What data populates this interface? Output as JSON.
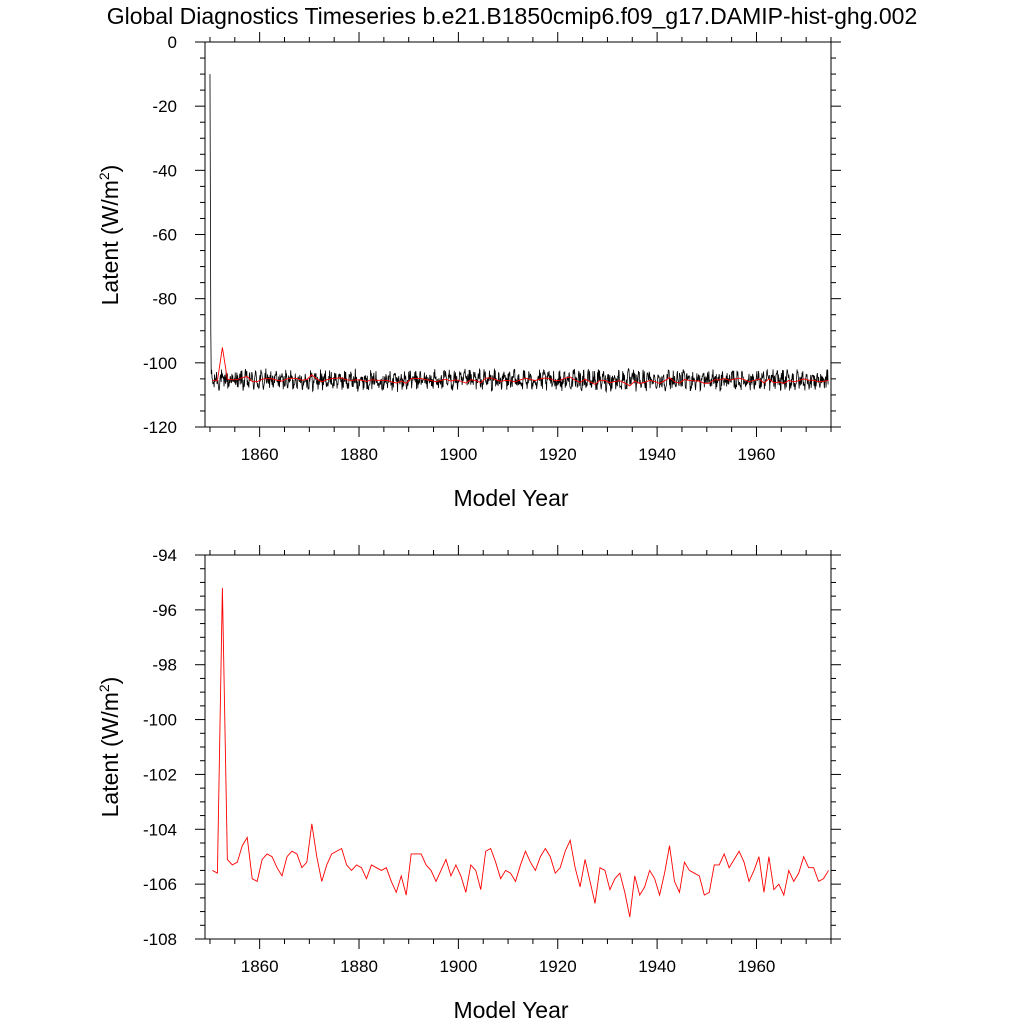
{
  "figure": {
    "title": "Global Diagnostics Timeseries b.e21.B1850cmip6.f09_g17.DAMIP-hist-ghg.002"
  },
  "chart_data": [
    {
      "type": "line",
      "ylabel": "Latent (W/m",
      "ylabel_sup": "2",
      "ylabel_close": ")",
      "xlabel": "Model Year",
      "xlim": [
        1849,
        1975
      ],
      "ylim": [
        -120,
        0
      ],
      "x_ticks": [
        1860,
        1880,
        1900,
        1920,
        1940,
        1960
      ],
      "y_ticks": [
        0,
        -20,
        -40,
        -60,
        -80,
        -100,
        -120
      ],
      "series": [
        {
          "type": "monthly",
          "color": "#000000",
          "start_year": 1850,
          "start_values": [
            -10,
            -50,
            -90,
            -103.5
          ],
          "mean": -105.4,
          "amplitude": 2.5
        },
        {
          "type": "annual",
          "color": "#ff0000",
          "x": [
            1850,
            1851,
            1852,
            1853,
            1854,
            1855,
            1856,
            1857,
            1858,
            1859,
            1860,
            1861,
            1862,
            1863,
            1864,
            1865,
            1866,
            1867,
            1868,
            1869,
            1870,
            1871,
            1872,
            1873,
            1874,
            1875,
            1876,
            1877,
            1878,
            1879,
            1880,
            1881,
            1882,
            1883,
            1884,
            1885,
            1886,
            1887,
            1888,
            1889,
            1890,
            1891,
            1892,
            1893,
            1894,
            1895,
            1896,
            1897,
            1898,
            1899,
            1900,
            1901,
            1902,
            1903,
            1904,
            1905,
            1906,
            1907,
            1908,
            1909,
            1910,
            1911,
            1912,
            1913,
            1914,
            1915,
            1916,
            1917,
            1918,
            1919,
            1920,
            1921,
            1922,
            1923,
            1924,
            1925,
            1926,
            1927,
            1928,
            1929,
            1930,
            1931,
            1932,
            1933,
            1934,
            1935,
            1936,
            1937,
            1938,
            1939,
            1940,
            1941,
            1942,
            1943,
            1944,
            1945,
            1946,
            1947,
            1948,
            1949,
            1950,
            1951,
            1952,
            1953,
            1954,
            1955,
            1956,
            1957,
            1958,
            1959,
            1960,
            1961,
            1962,
            1963,
            1964,
            1965,
            1966,
            1967,
            1968,
            1969,
            1970,
            1971,
            1972,
            1973,
            1974
          ],
          "values": [
            -105.5,
            -105.6,
            -95.2,
            -105.1,
            -105.3,
            -105.2,
            -104.6,
            -104.3,
            -105.8,
            -105.9,
            -105.1,
            -104.9,
            -105.0,
            -105.4,
            -105.7,
            -105.0,
            -104.8,
            -104.9,
            -105.4,
            -105.2,
            -103.8,
            -105.0,
            -105.9,
            -105.3,
            -104.9,
            -104.8,
            -104.7,
            -105.3,
            -105.5,
            -105.3,
            -105.4,
            -105.8,
            -105.3,
            -105.4,
            -105.5,
            -105.4,
            -105.9,
            -106.3,
            -105.7,
            -106.4,
            -104.9,
            -104.9,
            -104.9,
            -105.3,
            -105.5,
            -105.9,
            -105.5,
            -105.1,
            -105.7,
            -105.3,
            -105.7,
            -106.3,
            -105.3,
            -105.5,
            -106.2,
            -104.8,
            -104.7,
            -105.2,
            -105.8,
            -105.5,
            -105.6,
            -105.9,
            -105.3,
            -104.8,
            -105.2,
            -105.5,
            -105.0,
            -104.7,
            -105.0,
            -105.6,
            -105.4,
            -104.8,
            -104.4,
            -105.4,
            -106.1,
            -105.1,
            -105.9,
            -106.7,
            -105.4,
            -105.5,
            -106.2,
            -105.8,
            -105.6,
            -106.3,
            -107.2,
            -105.7,
            -106.4,
            -106.1,
            -105.5,
            -105.8,
            -106.4,
            -105.6,
            -104.6,
            -105.9,
            -106.3,
            -105.2,
            -105.5,
            -105.6,
            -105.7,
            -106.4,
            -106.3,
            -105.3,
            -105.3,
            -104.9,
            -105.4,
            -105.1,
            -104.8,
            -105.2,
            -105.9,
            -105.5,
            -105.0,
            -106.3,
            -105.0,
            -106.2,
            -106.0,
            -106.4,
            -105.5,
            -105.9,
            -105.6,
            -105.0,
            -105.4,
            -105.4,
            -105.9,
            -105.8,
            -105.5
          ]
        }
      ]
    },
    {
      "type": "line",
      "ylabel": "Latent (W/m",
      "ylabel_sup": "2",
      "ylabel_close": ")",
      "xlabel": "Model Year",
      "xlim": [
        1849,
        1975
      ],
      "ylim": [
        -108,
        -94
      ],
      "x_ticks": [
        1860,
        1880,
        1900,
        1920,
        1940,
        1960
      ],
      "y_ticks": [
        -94,
        -96,
        -98,
        -100,
        -102,
        -104,
        -106,
        -108
      ],
      "series": [
        {
          "type": "annual",
          "color": "#ff0000",
          "ref": "panel0.series1"
        }
      ]
    }
  ]
}
